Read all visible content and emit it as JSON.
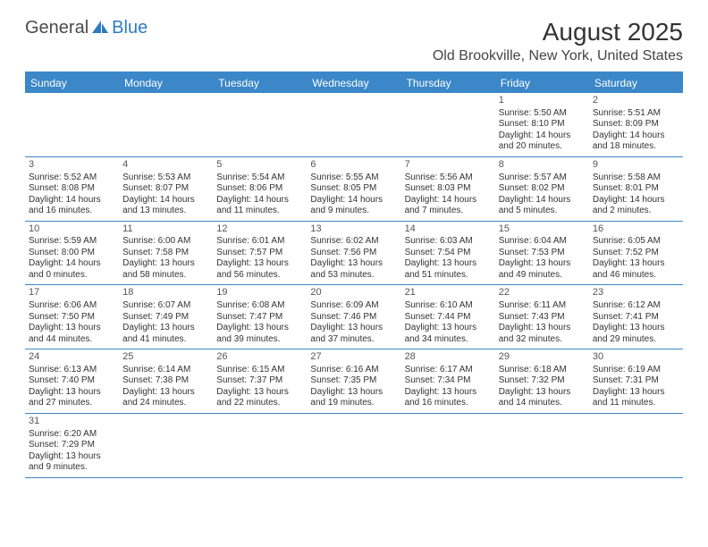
{
  "logo": {
    "text1": "General",
    "text2": "Blue"
  },
  "title": "August 2025",
  "location": "Old Brookville, New York, United States",
  "day_names": [
    "Sunday",
    "Monday",
    "Tuesday",
    "Wednesday",
    "Thursday",
    "Friday",
    "Saturday"
  ],
  "colors": {
    "brand": "#3b87c8",
    "text": "#333333"
  },
  "weeks": [
    [
      {},
      {},
      {},
      {},
      {},
      {
        "n": "1",
        "sr": "5:50 AM",
        "ss": "8:10 PM",
        "dl": "14 hours and 20 minutes."
      },
      {
        "n": "2",
        "sr": "5:51 AM",
        "ss": "8:09 PM",
        "dl": "14 hours and 18 minutes."
      }
    ],
    [
      {
        "n": "3",
        "sr": "5:52 AM",
        "ss": "8:08 PM",
        "dl": "14 hours and 16 minutes."
      },
      {
        "n": "4",
        "sr": "5:53 AM",
        "ss": "8:07 PM",
        "dl": "14 hours and 13 minutes."
      },
      {
        "n": "5",
        "sr": "5:54 AM",
        "ss": "8:06 PM",
        "dl": "14 hours and 11 minutes."
      },
      {
        "n": "6",
        "sr": "5:55 AM",
        "ss": "8:05 PM",
        "dl": "14 hours and 9 minutes."
      },
      {
        "n": "7",
        "sr": "5:56 AM",
        "ss": "8:03 PM",
        "dl": "14 hours and 7 minutes."
      },
      {
        "n": "8",
        "sr": "5:57 AM",
        "ss": "8:02 PM",
        "dl": "14 hours and 5 minutes."
      },
      {
        "n": "9",
        "sr": "5:58 AM",
        "ss": "8:01 PM",
        "dl": "14 hours and 2 minutes."
      }
    ],
    [
      {
        "n": "10",
        "sr": "5:59 AM",
        "ss": "8:00 PM",
        "dl": "14 hours and 0 minutes."
      },
      {
        "n": "11",
        "sr": "6:00 AM",
        "ss": "7:58 PM",
        "dl": "13 hours and 58 minutes."
      },
      {
        "n": "12",
        "sr": "6:01 AM",
        "ss": "7:57 PM",
        "dl": "13 hours and 56 minutes."
      },
      {
        "n": "13",
        "sr": "6:02 AM",
        "ss": "7:56 PM",
        "dl": "13 hours and 53 minutes."
      },
      {
        "n": "14",
        "sr": "6:03 AM",
        "ss": "7:54 PM",
        "dl": "13 hours and 51 minutes."
      },
      {
        "n": "15",
        "sr": "6:04 AM",
        "ss": "7:53 PM",
        "dl": "13 hours and 49 minutes."
      },
      {
        "n": "16",
        "sr": "6:05 AM",
        "ss": "7:52 PM",
        "dl": "13 hours and 46 minutes."
      }
    ],
    [
      {
        "n": "17",
        "sr": "6:06 AM",
        "ss": "7:50 PM",
        "dl": "13 hours and 44 minutes."
      },
      {
        "n": "18",
        "sr": "6:07 AM",
        "ss": "7:49 PM",
        "dl": "13 hours and 41 minutes."
      },
      {
        "n": "19",
        "sr": "6:08 AM",
        "ss": "7:47 PM",
        "dl": "13 hours and 39 minutes."
      },
      {
        "n": "20",
        "sr": "6:09 AM",
        "ss": "7:46 PM",
        "dl": "13 hours and 37 minutes."
      },
      {
        "n": "21",
        "sr": "6:10 AM",
        "ss": "7:44 PM",
        "dl": "13 hours and 34 minutes."
      },
      {
        "n": "22",
        "sr": "6:11 AM",
        "ss": "7:43 PM",
        "dl": "13 hours and 32 minutes."
      },
      {
        "n": "23",
        "sr": "6:12 AM",
        "ss": "7:41 PM",
        "dl": "13 hours and 29 minutes."
      }
    ],
    [
      {
        "n": "24",
        "sr": "6:13 AM",
        "ss": "7:40 PM",
        "dl": "13 hours and 27 minutes."
      },
      {
        "n": "25",
        "sr": "6:14 AM",
        "ss": "7:38 PM",
        "dl": "13 hours and 24 minutes."
      },
      {
        "n": "26",
        "sr": "6:15 AM",
        "ss": "7:37 PM",
        "dl": "13 hours and 22 minutes."
      },
      {
        "n": "27",
        "sr": "6:16 AM",
        "ss": "7:35 PM",
        "dl": "13 hours and 19 minutes."
      },
      {
        "n": "28",
        "sr": "6:17 AM",
        "ss": "7:34 PM",
        "dl": "13 hours and 16 minutes."
      },
      {
        "n": "29",
        "sr": "6:18 AM",
        "ss": "7:32 PM",
        "dl": "13 hours and 14 minutes."
      },
      {
        "n": "30",
        "sr": "6:19 AM",
        "ss": "7:31 PM",
        "dl": "13 hours and 11 minutes."
      }
    ],
    [
      {
        "n": "31",
        "sr": "6:20 AM",
        "ss": "7:29 PM",
        "dl": "13 hours and 9 minutes."
      },
      {},
      {},
      {},
      {},
      {},
      {}
    ]
  ],
  "labels": {
    "sunrise": "Sunrise:",
    "sunset": "Sunset:",
    "daylight": "Daylight:"
  }
}
